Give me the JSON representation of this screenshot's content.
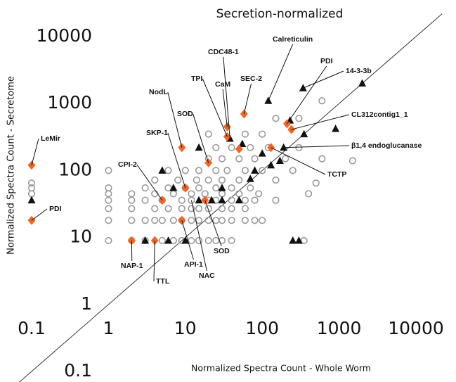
{
  "chart_data": {
    "type": "scatter",
    "title": "Secretion-normalized",
    "x_label": "Normalized Spectra Count - Whole Worm",
    "y_label": "Normalized Spectra Count - Secretome",
    "xscale": "log",
    "yscale": "log",
    "xlim": [
      0.1,
      10000
    ],
    "ylim": [
      0.1,
      10000
    ],
    "xticks": [
      0.1,
      1,
      10,
      100,
      1000,
      10000
    ],
    "yticks": [
      0.1,
      1,
      10,
      100,
      1000,
      10000
    ],
    "diagonal": true,
    "series": [
      {
        "color": "#999999",
        "marker": "circle",
        "x": [
          1,
          2,
          3,
          5,
          7,
          9,
          12,
          15,
          20,
          25,
          30,
          40,
          1,
          2,
          3,
          4,
          5,
          7,
          9,
          12,
          15,
          20,
          25,
          30,
          40,
          60,
          80,
          100,
          1,
          2,
          4,
          6,
          9,
          12,
          15,
          20,
          30,
          40,
          60,
          1,
          2,
          3,
          5,
          9,
          12,
          20,
          25,
          40,
          60,
          80,
          150,
          1,
          2,
          4,
          7,
          12,
          18,
          30,
          50,
          90,
          1,
          3,
          6,
          10,
          15,
          25,
          40,
          70,
          4,
          8,
          14,
          20,
          30,
          50,
          150,
          1,
          6,
          10,
          15,
          25,
          35,
          60,
          100,
          250,
          20,
          30,
          50,
          80,
          200,
          600,
          25,
          40,
          70,
          120,
          300,
          20,
          60,
          100,
          150,
          300,
          600,
          1500,
          500,
          350,
          400,
          0.1,
          0.1,
          0.1
        ],
        "y": [
          9,
          9,
          9,
          9,
          9,
          9,
          9,
          9,
          9,
          9,
          9,
          9,
          18,
          18,
          18,
          18,
          18,
          18,
          18,
          18,
          18,
          18,
          18,
          18,
          18,
          18,
          18,
          18,
          27,
          27,
          27,
          27,
          27,
          27,
          27,
          27,
          27,
          27,
          27,
          36,
          36,
          36,
          36,
          36,
          36,
          36,
          36,
          36,
          36,
          36,
          36,
          45,
          45,
          45,
          45,
          45,
          45,
          45,
          45,
          45,
          55,
          55,
          55,
          55,
          55,
          55,
          55,
          55,
          72,
          72,
          72,
          72,
          72,
          72,
          72,
          100,
          100,
          100,
          100,
          100,
          100,
          100,
          100,
          100,
          150,
          150,
          150,
          150,
          150,
          150,
          220,
          220,
          220,
          220,
          220,
          350,
          350,
          350,
          600,
          600,
          1100,
          140,
          65,
          9,
          45,
          65,
          55,
          45
        ]
      },
      {
        "color": "#111111",
        "marker": "triangle",
        "x": [
          0.1,
          3,
          6,
          10,
          5,
          7,
          15,
          15,
          22,
          30,
          30,
          38,
          50,
          55,
          70,
          80,
          120,
          170,
          190,
          230,
          350,
          340,
          900,
          2000,
          250,
          300,
          100,
          130
        ],
        "y": [
          36,
          9,
          9,
          9,
          100,
          55,
          36,
          220,
          36,
          55,
          36,
          300,
          36,
          250,
          75,
          100,
          1100,
          140,
          220,
          560,
          350,
          1700,
          420,
          2000,
          9,
          9,
          180,
          120
        ]
      },
      {
        "color": "#f26522",
        "marker": "diamond",
        "x": [
          0.1,
          0.1,
          2,
          4,
          5,
          9,
          10,
          9,
          20,
          18,
          35,
          35,
          50,
          58,
          130,
          210,
          240
        ],
        "y": [
          120,
          18,
          9,
          9,
          36,
          18,
          55,
          220,
          130,
          36,
          450,
          320,
          210,
          700,
          220,
          500,
          410
        ]
      }
    ],
    "annotations": [
      {
        "text": "LeMir",
        "x": 0.1,
        "y": 120
      },
      {
        "text": "PDI",
        "x": 0.1,
        "y": 18
      },
      {
        "text": "NAP-1",
        "x": 2,
        "y": 9
      },
      {
        "text": "TTL",
        "x": 4,
        "y": 9
      },
      {
        "text": "CPI-2",
        "x": 5,
        "y": 36
      },
      {
        "text": "SKP-1",
        "x": 10,
        "y": 55
      },
      {
        "text": "NodL",
        "x": 9,
        "y": 220
      },
      {
        "text": "SOD",
        "x": 20,
        "y": 130
      },
      {
        "text": "TPI",
        "x": 35,
        "y": 320
      },
      {
        "text": "CaM",
        "x": 35,
        "y": 450
      },
      {
        "text": "CDC48-1",
        "x": 38,
        "y": 300
      },
      {
        "text": "SEC-2",
        "x": 58,
        "y": 700
      },
      {
        "text": "Calreticulin",
        "x": 120,
        "y": 1100
      },
      {
        "text": "PDI",
        "x": 210,
        "y": 500
      },
      {
        "text": "14-3-3b",
        "x": 340,
        "y": 1700
      },
      {
        "text": "CL312contig1_1",
        "x": 240,
        "y": 410
      },
      {
        "text": "β1,4 endoglucanase",
        "x": 190,
        "y": 220
      },
      {
        "text": "TCTP",
        "x": 130,
        "y": 220
      },
      {
        "text": "SOD",
        "x": 18,
        "y": 36
      },
      {
        "text": "API-1",
        "x": 9,
        "y": 18
      },
      {
        "text": "NAC",
        "x": 12,
        "y": 36
      }
    ]
  }
}
